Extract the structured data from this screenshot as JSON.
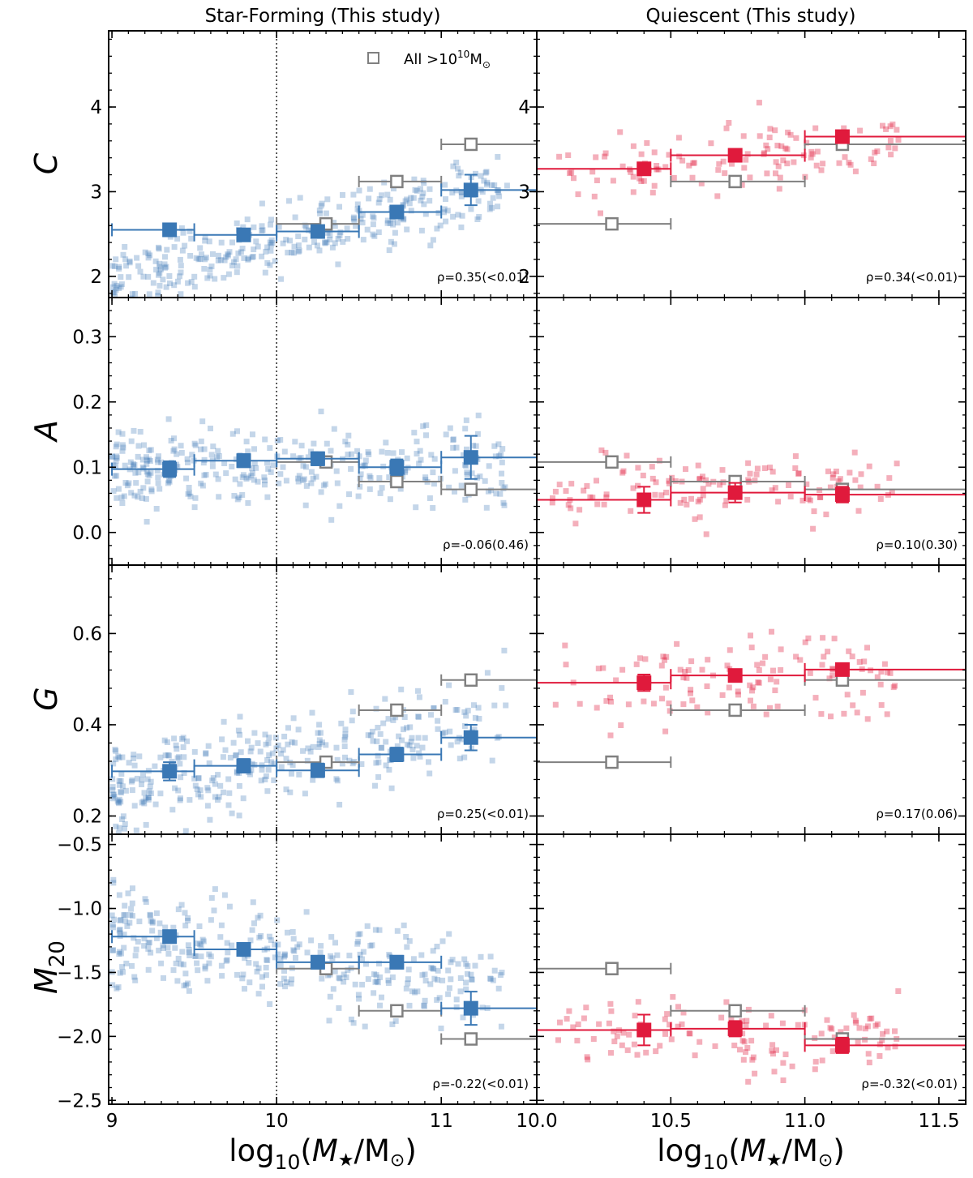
{
  "figure": {
    "column_titles": [
      "Star-Forming (This study)",
      "Quiescent (This study)"
    ],
    "legend_label": "All >10^10 M☉",
    "xlabel": "log10(M★/M☉)",
    "ylabels": [
      "C",
      "A",
      "G",
      "M20"
    ]
  },
  "colors": {
    "star_forming": "#3a78b5",
    "quiescent": "#e01a3c",
    "all_massive": "#808080"
  },
  "chart_data": [
    {
      "type": "scatter",
      "row": "C",
      "panel": "Star-Forming",
      "xlim": [
        8.98,
        11.58
      ],
      "ylim": [
        1.75,
        4.9
      ],
      "yticks": [
        2,
        3,
        4
      ],
      "ytick_labels": [
        "2",
        "3",
        "4"
      ],
      "xticks": [
        9,
        10,
        11
      ],
      "xtick_labels": [
        "9",
        "10",
        "11"
      ],
      "vline": 10.0,
      "rho_label": "ρ=0.35(<0.01)",
      "binned": {
        "x": [
          9.35,
          9.8,
          10.25,
          10.73,
          11.18
        ],
        "y": [
          2.55,
          2.49,
          2.53,
          2.76,
          3.02
        ],
        "xerr_lo": [
          0.35,
          0.3,
          0.25,
          0.23,
          0.18
        ],
        "xerr_hi": [
          0.15,
          0.2,
          0.25,
          0.27,
          0.4
        ],
        "yerr": [
          0.07,
          0.07,
          0.07,
          0.07,
          0.18
        ]
      },
      "all_massive": {
        "x": [
          10.3,
          10.73,
          11.18
        ],
        "y": [
          2.62,
          3.12,
          3.56
        ],
        "xerr_lo": [
          0.3,
          0.23,
          0.18
        ],
        "xerr_hi": [
          0.2,
          0.27,
          0.4
        ]
      }
    },
    {
      "type": "scatter",
      "row": "C",
      "panel": "Quiescent",
      "xlim": [
        10.0,
        11.6
      ],
      "ylim": [
        1.75,
        4.9
      ],
      "yticks": [
        2,
        3,
        4
      ],
      "ytick_labels": [
        "2",
        "3",
        "4"
      ],
      "xticks": [
        10.0,
        10.5,
        11.0,
        11.5
      ],
      "xtick_labels": [
        "10.0",
        "10.5",
        "11.0",
        "11.5"
      ],
      "vline": 10.0,
      "rho_label": "ρ=0.34(<0.01)",
      "binned": {
        "x": [
          10.4,
          10.74,
          11.14
        ],
        "y": [
          3.27,
          3.43,
          3.65
        ],
        "xerr_lo": [
          0.4,
          0.24,
          0.14
        ],
        "xerr_hi": [
          0.1,
          0.26,
          0.46
        ],
        "yerr": [
          0.05,
          0.05,
          0.07
        ]
      },
      "all_massive": {
        "x": [
          10.28,
          10.74,
          11.14
        ],
        "y": [
          2.62,
          3.12,
          3.56
        ],
        "xerr_lo": [
          0.28,
          0.24,
          0.14
        ],
        "xerr_hi": [
          0.22,
          0.26,
          0.46
        ]
      }
    },
    {
      "type": "scatter",
      "row": "A",
      "panel": "Star-Forming",
      "xlim": [
        8.98,
        11.58
      ],
      "ylim": [
        -0.05,
        0.36
      ],
      "yticks": [
        0.0,
        0.1,
        0.2,
        0.3
      ],
      "ytick_labels": [
        "0.0",
        "0.1",
        "0.2",
        "0.3"
      ],
      "xticks": [
        9,
        10,
        11
      ],
      "xtick_labels": [
        "9",
        "10",
        "11"
      ],
      "vline": 10.0,
      "rho_label": "ρ=-0.06(0.46)",
      "binned": {
        "x": [
          9.35,
          9.8,
          10.25,
          10.73,
          11.18
        ],
        "y": [
          0.097,
          0.11,
          0.113,
          0.1,
          0.115
        ],
        "xerr_lo": [
          0.35,
          0.3,
          0.25,
          0.23,
          0.18
        ],
        "xerr_hi": [
          0.15,
          0.2,
          0.25,
          0.27,
          0.4
        ],
        "yerr": [
          0.012,
          0.01,
          0.01,
          0.012,
          0.033
        ]
      },
      "all_massive": {
        "x": [
          10.3,
          10.73,
          11.18
        ],
        "y": [
          0.108,
          0.078,
          0.066
        ],
        "xerr_lo": [
          0.3,
          0.23,
          0.18
        ],
        "xerr_hi": [
          0.2,
          0.27,
          0.4
        ]
      }
    },
    {
      "type": "scatter",
      "row": "A",
      "panel": "Quiescent",
      "xlim": [
        10.0,
        11.6
      ],
      "ylim": [
        -0.05,
        0.36
      ],
      "yticks": [
        0.0,
        0.1,
        0.2,
        0.3
      ],
      "ytick_labels": [],
      "xticks": [
        10.0,
        10.5,
        11.0,
        11.5
      ],
      "xtick_labels": [
        "10.0",
        "10.5",
        "11.0",
        "11.5"
      ],
      "vline": 10.0,
      "rho_label": "ρ=0.10(0.30)",
      "binned": {
        "x": [
          10.4,
          10.74,
          11.14
        ],
        "y": [
          0.05,
          0.061,
          0.058
        ],
        "xerr_lo": [
          0.4,
          0.24,
          0.14
        ],
        "xerr_hi": [
          0.1,
          0.26,
          0.46
        ],
        "yerr": [
          0.02,
          0.015,
          0.012
        ]
      },
      "all_massive": {
        "x": [
          10.28,
          10.74,
          11.14
        ],
        "y": [
          0.108,
          0.078,
          0.066
        ],
        "xerr_lo": [
          0.28,
          0.24,
          0.14
        ],
        "xerr_hi": [
          0.22,
          0.26,
          0.46
        ]
      }
    },
    {
      "type": "scatter",
      "row": "G",
      "panel": "Star-Forming",
      "xlim": [
        8.98,
        11.58
      ],
      "ylim": [
        0.16,
        0.75
      ],
      "yticks": [
        0.2,
        0.4,
        0.6
      ],
      "ytick_labels": [
        "0.2",
        "0.4",
        "0.6"
      ],
      "xticks": [
        9,
        10,
        11
      ],
      "xtick_labels": [
        "9",
        "10",
        "11"
      ],
      "vline": 10.0,
      "rho_label": "ρ=0.25(<0.01)",
      "binned": {
        "x": [
          9.35,
          9.8,
          10.25,
          10.73,
          11.18
        ],
        "y": [
          0.298,
          0.31,
          0.3,
          0.335,
          0.372
        ],
        "xerr_lo": [
          0.35,
          0.3,
          0.25,
          0.23,
          0.18
        ],
        "xerr_hi": [
          0.15,
          0.2,
          0.25,
          0.27,
          0.4
        ],
        "yerr": [
          0.02,
          0.015,
          0.015,
          0.015,
          0.028
        ]
      },
      "all_massive": {
        "x": [
          10.3,
          10.73,
          11.18
        ],
        "y": [
          0.318,
          0.432,
          0.498
        ],
        "xerr_lo": [
          0.3,
          0.23,
          0.18
        ],
        "xerr_hi": [
          0.2,
          0.27,
          0.4
        ]
      }
    },
    {
      "type": "scatter",
      "row": "G",
      "panel": "Quiescent",
      "xlim": [
        10.0,
        11.6
      ],
      "ylim": [
        0.16,
        0.75
      ],
      "yticks": [
        0.2,
        0.4,
        0.6
      ],
      "ytick_labels": [],
      "xticks": [
        10.0,
        10.5,
        11.0,
        11.5
      ],
      "xtick_labels": [
        "10.0",
        "10.5",
        "11.0",
        "11.5"
      ],
      "vline": 10.0,
      "rho_label": "ρ=0.17(0.06)",
      "binned": {
        "x": [
          10.4,
          10.74,
          11.14
        ],
        "y": [
          0.492,
          0.508,
          0.521
        ],
        "xerr_lo": [
          0.4,
          0.24,
          0.14
        ],
        "xerr_hi": [
          0.1,
          0.26,
          0.46
        ],
        "yerr": [
          0.018,
          0.012,
          0.012
        ]
      },
      "all_massive": {
        "x": [
          10.28,
          10.74,
          11.14
        ],
        "y": [
          0.318,
          0.432,
          0.498
        ],
        "xerr_lo": [
          0.28,
          0.24,
          0.14
        ],
        "xerr_hi": [
          0.22,
          0.26,
          0.46
        ]
      }
    },
    {
      "type": "scatter",
      "row": "M20",
      "panel": "Star-Forming",
      "xlim": [
        8.98,
        11.58
      ],
      "ylim": [
        -2.53,
        -0.42
      ],
      "yticks": [
        -2.5,
        -2.0,
        -1.5,
        -1.0,
        -0.5
      ],
      "ytick_labels": [
        "−2.5",
        "−2.0",
        "−1.5",
        "−1.0",
        "−0.5"
      ],
      "xticks": [
        9,
        10,
        11
      ],
      "xtick_labels": [
        "9",
        "10",
        "11"
      ],
      "vline": 10.0,
      "rho_label": "ρ=-0.22(<0.01)",
      "binned": {
        "x": [
          9.35,
          9.8,
          10.25,
          10.73,
          11.18
        ],
        "y": [
          -1.22,
          -1.32,
          -1.42,
          -1.42,
          -1.78
        ],
        "xerr_lo": [
          0.35,
          0.3,
          0.25,
          0.23,
          0.18
        ],
        "xerr_hi": [
          0.15,
          0.2,
          0.25,
          0.27,
          0.4
        ],
        "yerr": [
          0.05,
          0.05,
          0.05,
          0.05,
          0.13
        ]
      },
      "all_massive": {
        "x": [
          10.3,
          10.73,
          11.18
        ],
        "y": [
          -1.47,
          -1.8,
          -2.02
        ],
        "xerr_lo": [
          0.3,
          0.23,
          0.18
        ],
        "xerr_hi": [
          0.2,
          0.27,
          0.4
        ]
      }
    },
    {
      "type": "scatter",
      "row": "M20",
      "panel": "Quiescent",
      "xlim": [
        10.0,
        11.6
      ],
      "ylim": [
        -2.53,
        -0.42
      ],
      "yticks": [
        -2.5,
        -2.0,
        -1.5,
        -1.0,
        -0.5
      ],
      "ytick_labels": [],
      "xticks": [
        10.0,
        10.5,
        11.0,
        11.5
      ],
      "xtick_labels": [
        "10.0",
        "10.5",
        "11.0",
        "11.5"
      ],
      "vline": 10.0,
      "rho_label": "ρ=-0.32(<0.01)",
      "binned": {
        "x": [
          10.4,
          10.74,
          11.14
        ],
        "y": [
          -1.95,
          -1.94,
          -2.07
        ],
        "xerr_lo": [
          0.4,
          0.24,
          0.14
        ],
        "xerr_hi": [
          0.1,
          0.26,
          0.46
        ],
        "yerr": [
          0.12,
          0.06,
          0.06
        ]
      },
      "all_massive": {
        "x": [
          10.28,
          10.74,
          11.14
        ],
        "y": [
          -1.47,
          -1.8,
          -2.02
        ],
        "xerr_lo": [
          0.28,
          0.24,
          0.14
        ],
        "xerr_hi": [
          0.22,
          0.26,
          0.46
        ]
      }
    }
  ]
}
